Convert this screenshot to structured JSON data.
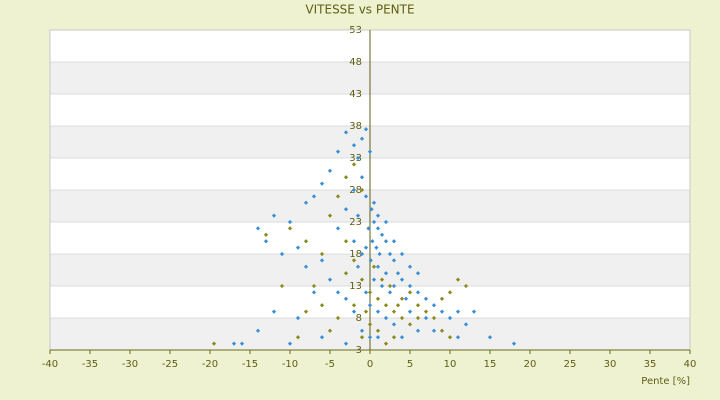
{
  "chart_data": {
    "type": "scatter",
    "title": "VITESSE vs PENTE",
    "xlabel": "Pente [%]",
    "xlim": [
      -40,
      40
    ],
    "xticks": [
      -40,
      -35,
      -30,
      -25,
      -20,
      -15,
      -10,
      -5,
      0,
      5,
      10,
      15,
      20,
      25,
      30,
      35,
      40
    ],
    "ylim": [
      3,
      53
    ],
    "yticks": [
      3,
      8,
      13,
      18,
      23,
      28,
      33,
      38,
      43,
      48,
      53
    ],
    "grid": true,
    "series": [
      {
        "color": "#3a8fd6",
        "x": [
          -0.5,
          -1,
          -2,
          -3,
          -4,
          -1.5,
          0,
          -5,
          -6,
          -7,
          -8,
          -10,
          -12,
          -14,
          -13,
          -11,
          -9,
          -8,
          -6,
          -4,
          -3,
          -2,
          -1,
          -0.5,
          0.2,
          0.5,
          1,
          1.5,
          2,
          0.3,
          0.8,
          1.2,
          2.5,
          3,
          0.1,
          -0.5,
          -1,
          -1.5,
          1,
          2,
          3.5,
          4,
          0.5,
          1.5,
          2.5,
          3,
          5,
          6,
          4.5,
          7,
          8,
          9,
          10,
          11,
          12,
          13,
          15,
          18,
          -0.5,
          0,
          1,
          2,
          3,
          -1,
          0,
          1,
          -2,
          -3,
          -4,
          -5,
          -7,
          -9,
          -12,
          -14,
          -16,
          -17,
          -10,
          -6,
          -3,
          4,
          6,
          7,
          5,
          8,
          11,
          0.5,
          1,
          -0.2,
          2,
          3,
          4,
          5,
          6,
          -2,
          -1.5
        ],
        "values": [
          37.5,
          36,
          35,
          37,
          34,
          33,
          34,
          31,
          29,
          27,
          26,
          23,
          24,
          22,
          20,
          18,
          19,
          16,
          17,
          22,
          25,
          28,
          30,
          27,
          25,
          23,
          22,
          21,
          20,
          20,
          19,
          18,
          18,
          17,
          17,
          19,
          18,
          16,
          16,
          15,
          15,
          14,
          14,
          13,
          12,
          13,
          13,
          12,
          11,
          11,
          10,
          9,
          8,
          9,
          7,
          9,
          5,
          4,
          12,
          10,
          9,
          8,
          7,
          6,
          5,
          5,
          9,
          11,
          12,
          14,
          12,
          8,
          9,
          6,
          4,
          4,
          4,
          5,
          4,
          5,
          6,
          8,
          9,
          6,
          5,
          26,
          24,
          22,
          23,
          20,
          18,
          16,
          15,
          20,
          24
        ]
      },
      {
        "color": "#8c8a1e",
        "x": [
          -19.5,
          -13,
          -10,
          -8,
          -6,
          -5,
          -4,
          -3,
          -2,
          -1,
          -3,
          -2,
          -1,
          0,
          1,
          2,
          3,
          4,
          5,
          6,
          7,
          8,
          9,
          10,
          11,
          12,
          9,
          10,
          -4,
          -5,
          -6,
          -7,
          -8,
          -9,
          -11,
          -1,
          0,
          1,
          2,
          3,
          4,
          5,
          6,
          -2,
          -3,
          0.5,
          1.5,
          2.5,
          -0.5,
          3.5
        ],
        "values": [
          4,
          21,
          22,
          20,
          18,
          24,
          27,
          30,
          32,
          28,
          20,
          17,
          14,
          12,
          11,
          10,
          9,
          8,
          7,
          10,
          9,
          8,
          11,
          12,
          14,
          13,
          6,
          5,
          8,
          6,
          10,
          13,
          9,
          5,
          13,
          5,
          7,
          6,
          4,
          5,
          11,
          12,
          8,
          10,
          15,
          16,
          14,
          13,
          9,
          10
        ]
      }
    ]
  }
}
